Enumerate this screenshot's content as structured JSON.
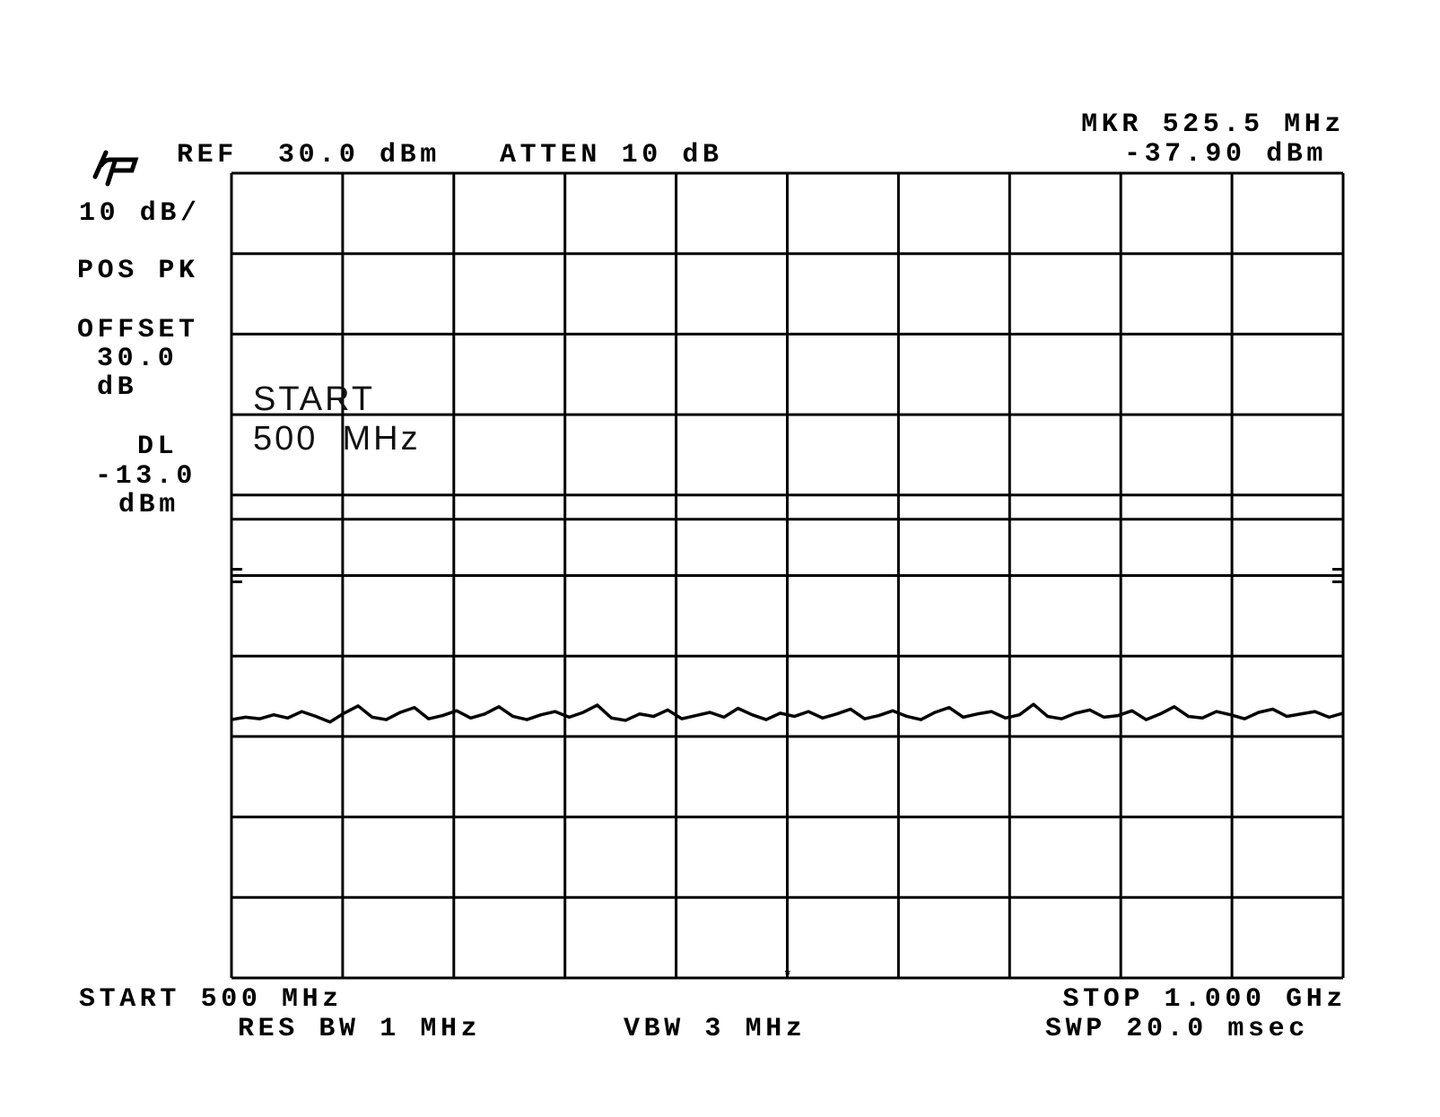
{
  "header": {
    "logo": "hp",
    "ref_label": "REF  30.0 dBm",
    "atten_label": "ATTEN 10 dB",
    "marker_freq": "MKR 525.5 MHz",
    "marker_level": "-37.90 dBm"
  },
  "left_panel": {
    "scale": "10 dB/",
    "detector": "POS PK",
    "offset_label": "OFFSET",
    "offset_value": "30.0",
    "offset_unit": "dB",
    "dl_label": "DL",
    "dl_value": "-13.0",
    "dl_unit": "dBm"
  },
  "overlay": {
    "line1": "START",
    "line2": "500  MHz"
  },
  "footer": {
    "start": "START 500 MHz",
    "res_bw": "RES BW 1 MHz",
    "vbw": "VBW 3 MHz",
    "stop": "STOP 1.000 GHz",
    "sweep": "SWP 20.0 msec"
  },
  "chart_data": {
    "type": "line",
    "xlabel": "",
    "ylabel": "",
    "x_range_mhz": [
      500,
      1000
    ],
    "ylim": [
      -70,
      30
    ],
    "y_units": "dBm",
    "divisions_x": 10,
    "divisions_y": 10,
    "grid": true,
    "display_line_dbm": -13.0,
    "marker": {
      "freq_mhz": 525.5,
      "level_dbm": -37.9
    },
    "series": [
      {
        "values": [
          -37.9,
          -37.6,
          -37.8,
          -37.3,
          -37.7,
          -36.9,
          -37.5,
          -38.2,
          -37.1,
          -36.2,
          -37.6,
          -37.9,
          -37.0,
          -36.4,
          -37.8,
          -37.4,
          -36.8,
          -37.7,
          -37.2,
          -36.3,
          -37.5,
          -37.9,
          -37.3,
          -36.9,
          -37.6,
          -37.0,
          -36.1,
          -37.7,
          -38.0,
          -37.2,
          -37.5,
          -36.7,
          -37.8,
          -37.4,
          -37.0,
          -37.6,
          -36.5,
          -37.3,
          -37.9,
          -37.1,
          -37.5,
          -36.9,
          -37.7,
          -37.2,
          -36.6,
          -37.8,
          -37.4,
          -36.8,
          -37.5,
          -37.9,
          -37.0,
          -36.4,
          -37.6,
          -37.2,
          -36.9,
          -37.7,
          -37.3,
          -36.0,
          -37.5,
          -37.8,
          -37.1,
          -36.7,
          -37.6,
          -37.4,
          -36.8,
          -37.9,
          -37.2,
          -36.3,
          -37.5,
          -37.7,
          -36.9,
          -37.3,
          -37.8,
          -37.0,
          -36.6,
          -37.5,
          -37.2,
          -36.9,
          -37.6,
          -37.1
        ],
        "color": "#000000"
      }
    ]
  }
}
